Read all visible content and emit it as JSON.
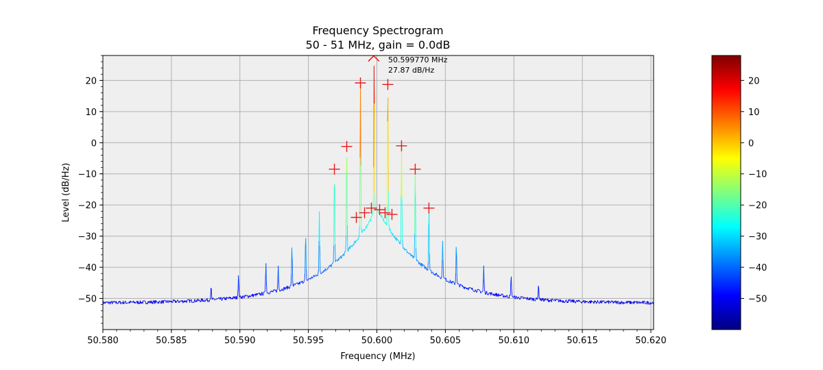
{
  "chart_data": {
    "type": "line",
    "title": "Frequency Spectrogram",
    "subtitle": "50 - 51 MHz, gain = 0.0dB",
    "xlabel": "Frequency (MHz)",
    "ylabel": "Level (dB/Hz)",
    "xlim": [
      50.58,
      50.6202
    ],
    "ylim": [
      -60,
      28
    ],
    "grid": true,
    "x_ticks": [
      50.58,
      50.585,
      50.59,
      50.595,
      50.6,
      50.605,
      50.61,
      50.615,
      50.62
    ],
    "x_tick_labels": [
      "50.580",
      "50.585",
      "50.590",
      "50.595",
      "50.600",
      "50.605",
      "50.610",
      "50.615",
      "50.620"
    ],
    "y_ticks": [
      20,
      10,
      0,
      -10,
      -20,
      -30,
      -40,
      -50
    ],
    "y_tick_labels": [
      "20",
      "10",
      "0",
      "−10",
      "−20",
      "−30",
      "−40",
      "−50"
    ],
    "colormap": "jet",
    "colorbar": {
      "range": [
        -60,
        28
      ],
      "ticks": [
        20,
        10,
        0,
        -10,
        -20,
        -30,
        -40,
        -50
      ],
      "tick_labels": [
        "20",
        "10",
        "0",
        "−10",
        "−20",
        "−30",
        "−40",
        "−50"
      ]
    },
    "baseline": {
      "center": 50.6,
      "peak_level": -21,
      "edge_level": -51.5
    },
    "spurs": [
      {
        "x": 50.5969,
        "y": -8.5
      },
      {
        "x": 50.5978,
        "y": -1.2
      },
      {
        "x": 50.5988,
        "y": 19.2
      },
      {
        "x": 50.5998,
        "y": 27.87
      },
      {
        "x": 50.6008,
        "y": 18.7
      },
      {
        "x": 50.6018,
        "y": -1.0
      },
      {
        "x": 50.6028,
        "y": -8.5
      },
      {
        "x": 50.6038,
        "y": -21.0
      },
      {
        "x": 50.5958,
        "y": -22
      },
      {
        "x": 50.5948,
        "y": -29
      },
      {
        "x": 50.5938,
        "y": -33
      },
      {
        "x": 50.5928,
        "y": -39.5
      },
      {
        "x": 50.5919,
        "y": -38.5
      },
      {
        "x": 50.5899,
        "y": -42.5
      },
      {
        "x": 50.5879,
        "y": -46
      },
      {
        "x": 50.6048,
        "y": -31.5
      },
      {
        "x": 50.6058,
        "y": -32.5
      },
      {
        "x": 50.6078,
        "y": -39.5
      },
      {
        "x": 50.6098,
        "y": -42.5
      },
      {
        "x": 50.6118,
        "y": -45.5
      }
    ],
    "markers": [
      {
        "x": 50.5969,
        "y": -8.5
      },
      {
        "x": 50.5978,
        "y": -1.2
      },
      {
        "x": 50.5988,
        "y": 19.2
      },
      {
        "x": 50.6008,
        "y": 18.7
      },
      {
        "x": 50.6018,
        "y": -1.0
      },
      {
        "x": 50.6028,
        "y": -8.5
      },
      {
        "x": 50.6038,
        "y": -21.0
      },
      {
        "x": 50.5985,
        "y": -24.0
      },
      {
        "x": 50.5991,
        "y": -22.5
      },
      {
        "x": 50.5996,
        "y": -21.0
      },
      {
        "x": 50.6002,
        "y": -21.5
      },
      {
        "x": 50.6006,
        "y": -22.5
      },
      {
        "x": 50.6011,
        "y": -23.0
      }
    ],
    "peak_marker": {
      "x": 50.59977,
      "y": 27.87
    },
    "annotation": {
      "line1": "50.599770 MHz",
      "line2": "27.87 dB/Hz"
    }
  }
}
